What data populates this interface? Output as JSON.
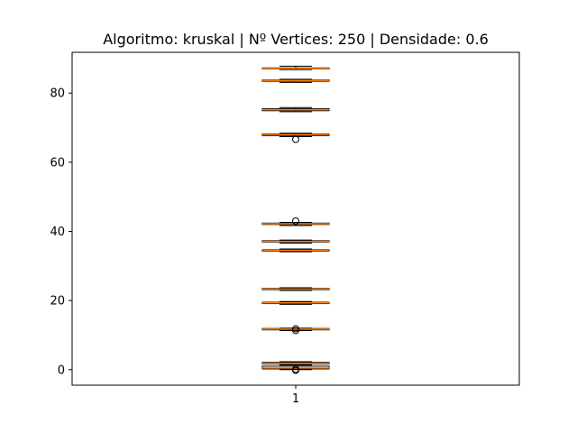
{
  "chart_data": {
    "type": "box",
    "title": "Algoritmo: kruskal | Nº Vertices: 250 | Densidade: 0.6",
    "xlabel": "",
    "ylabel": "",
    "categories": [
      "1"
    ],
    "ylim": [
      -4.5,
      91.8
    ],
    "yticks": [
      0,
      20,
      40,
      60,
      80
    ],
    "grid": false,
    "box_color": "#000000",
    "median_color": "#ff7f0e",
    "boxes": [
      {
        "q1": 87.0,
        "median": 87.15,
        "q3": 87.3,
        "whisker_low": 86.8,
        "whisker_high": 87.8,
        "outliers": []
      },
      {
        "q1": 83.4,
        "median": 83.6,
        "q3": 83.8,
        "whisker_low": 83.1,
        "whisker_high": 84.0,
        "outliers": []
      },
      {
        "q1": 74.9,
        "median": 75.2,
        "q3": 75.5,
        "whisker_low": 74.6,
        "whisker_high": 75.8,
        "outliers": []
      },
      {
        "q1": 67.7,
        "median": 68.0,
        "q3": 68.2,
        "whisker_low": 67.4,
        "whisker_high": 68.4,
        "outliers": [
          66.6
        ]
      },
      {
        "q1": 42.0,
        "median": 42.2,
        "q3": 42.4,
        "whisker_low": 41.7,
        "whisker_high": 42.6,
        "outliers": [
          43.0
        ]
      },
      {
        "q1": 36.9,
        "median": 37.1,
        "q3": 37.3,
        "whisker_low": 36.6,
        "whisker_high": 37.5,
        "outliers": []
      },
      {
        "q1": 34.3,
        "median": 34.5,
        "q3": 34.7,
        "whisker_low": 34.1,
        "whisker_high": 34.9,
        "outliers": []
      },
      {
        "q1": 23.1,
        "median": 23.3,
        "q3": 23.5,
        "whisker_low": 22.9,
        "whisker_high": 23.7,
        "outliers": []
      },
      {
        "q1": 19.1,
        "median": 19.3,
        "q3": 19.5,
        "whisker_low": 18.9,
        "whisker_high": 19.7,
        "outliers": []
      },
      {
        "q1": 11.5,
        "median": 11.7,
        "q3": 11.9,
        "whisker_low": 11.3,
        "whisker_high": 12.0,
        "outliers": [
          11.3,
          11.8
        ]
      },
      {
        "q1": 1.6,
        "median": 1.8,
        "q3": 2.1,
        "whisker_low": 1.4,
        "whisker_high": 2.3,
        "outliers": []
      },
      {
        "q1": 0.2,
        "median": 0.5,
        "q3": 1.0,
        "whisker_low": 0.0,
        "whisker_high": 1.3,
        "outliers": [
          -0.2,
          0.1
        ]
      }
    ]
  }
}
